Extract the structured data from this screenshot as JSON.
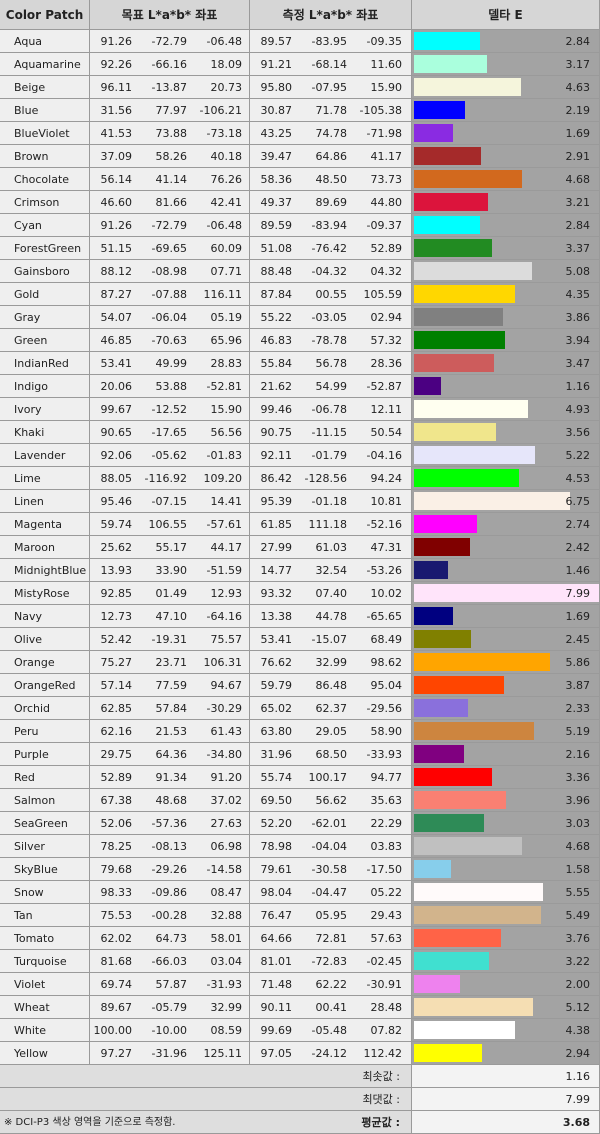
{
  "header": [
    "Color Patch",
    "목표 L*a*b* 좌표",
    "측정 L*a*b* 좌표",
    "델타 E"
  ],
  "rows": [
    {
      "name": "Aqua",
      "color": "#00ffff",
      "target": [
        "91.26",
        "-72.79",
        "-06.48"
      ],
      "measured": [
        "89.57",
        "-83.95",
        "-09.35"
      ],
      "delta_e": "2.84"
    },
    {
      "name": "Aquamarine",
      "color": "#aaffdd",
      "target": [
        "92.26",
        "-66.16",
        "18.09"
      ],
      "measured": [
        "91.21",
        "-68.14",
        "11.60"
      ],
      "delta_e": "3.17"
    },
    {
      "name": "Beige",
      "color": "#f5f5dc",
      "target": [
        "96.11",
        "-13.87",
        "20.73"
      ],
      "measured": [
        "95.80",
        "-07.95",
        "15.90"
      ],
      "delta_e": "4.63"
    },
    {
      "name": "Blue",
      "color": "#0000ff",
      "target": [
        "31.56",
        "77.97",
        "-106.21"
      ],
      "measured": [
        "30.87",
        "71.78",
        "-105.38"
      ],
      "delta_e": "2.19"
    },
    {
      "name": "BlueViolet",
      "color": "#8a2be2",
      "target": [
        "41.53",
        "73.88",
        "-73.18"
      ],
      "measured": [
        "43.25",
        "74.78",
        "-71.98"
      ],
      "delta_e": "1.69"
    },
    {
      "name": "Brown",
      "color": "#a52a2a",
      "target": [
        "37.09",
        "58.26",
        "40.18"
      ],
      "measured": [
        "39.47",
        "64.86",
        "41.17"
      ],
      "delta_e": "2.91"
    },
    {
      "name": "Chocolate",
      "color": "#d2691e",
      "target": [
        "56.14",
        "41.14",
        "76.26"
      ],
      "measured": [
        "58.36",
        "48.50",
        "73.73"
      ],
      "delta_e": "4.68"
    },
    {
      "name": "Crimson",
      "color": "#dc143c",
      "target": [
        "46.60",
        "81.66",
        "42.41"
      ],
      "measured": [
        "49.37",
        "89.69",
        "44.80"
      ],
      "delta_e": "3.21"
    },
    {
      "name": "Cyan",
      "color": "#00ffff",
      "target": [
        "91.26",
        "-72.79",
        "-06.48"
      ],
      "measured": [
        "89.59",
        "-83.94",
        "-09.37"
      ],
      "delta_e": "2.84"
    },
    {
      "name": "ForestGreen",
      "color": "#228b22",
      "target": [
        "51.15",
        "-69.65",
        "60.09"
      ],
      "measured": [
        "51.08",
        "-76.42",
        "52.89"
      ],
      "delta_e": "3.37"
    },
    {
      "name": "Gainsboro",
      "color": "#dcdcdc",
      "target": [
        "88.12",
        "-08.98",
        "07.71"
      ],
      "measured": [
        "88.48",
        "-04.32",
        "04.32"
      ],
      "delta_e": "5.08"
    },
    {
      "name": "Gold",
      "color": "#ffd700",
      "target": [
        "87.27",
        "-07.88",
        "116.11"
      ],
      "measured": [
        "87.84",
        "00.55",
        "105.59"
      ],
      "delta_e": "4.35"
    },
    {
      "name": "Gray",
      "color": "#808080",
      "target": [
        "54.07",
        "-06.04",
        "05.19"
      ],
      "measured": [
        "55.22",
        "-03.05",
        "02.94"
      ],
      "delta_e": "3.86"
    },
    {
      "name": "Green",
      "color": "#008000",
      "target": [
        "46.85",
        "-70.63",
        "65.96"
      ],
      "measured": [
        "46.83",
        "-78.78",
        "57.32"
      ],
      "delta_e": "3.94"
    },
    {
      "name": "IndianRed",
      "color": "#cd5c5c",
      "target": [
        "53.41",
        "49.99",
        "28.83"
      ],
      "measured": [
        "55.84",
        "56.78",
        "28.36"
      ],
      "delta_e": "3.47"
    },
    {
      "name": "Indigo",
      "color": "#4b0082",
      "target": [
        "20.06",
        "53.88",
        "-52.81"
      ],
      "measured": [
        "21.62",
        "54.99",
        "-52.87"
      ],
      "delta_e": "1.16"
    },
    {
      "name": "Ivory",
      "color": "#fffff0",
      "target": [
        "99.67",
        "-12.52",
        "15.90"
      ],
      "measured": [
        "99.46",
        "-06.78",
        "12.11"
      ],
      "delta_e": "4.93"
    },
    {
      "name": "Khaki",
      "color": "#f0e68c",
      "target": [
        "90.65",
        "-17.65",
        "56.56"
      ],
      "measured": [
        "90.75",
        "-11.15",
        "50.54"
      ],
      "delta_e": "3.56"
    },
    {
      "name": "Lavender",
      "color": "#e6e6fa",
      "target": [
        "92.06",
        "-05.62",
        "-01.83"
      ],
      "measured": [
        "92.11",
        "-01.79",
        "-04.16"
      ],
      "delta_e": "5.22"
    },
    {
      "name": "Lime",
      "color": "#00ff00",
      "target": [
        "88.05",
        "-116.92",
        "109.20"
      ],
      "measured": [
        "86.42",
        "-128.56",
        "94.24"
      ],
      "delta_e": "4.53"
    },
    {
      "name": "Linen",
      "color": "#faf0e6",
      "target": [
        "95.46",
        "-07.15",
        "14.41"
      ],
      "measured": [
        "95.39",
        "-01.18",
        "10.81"
      ],
      "delta_e": "6.75"
    },
    {
      "name": "Magenta",
      "color": "#ff00ff",
      "target": [
        "59.74",
        "106.55",
        "-57.61"
      ],
      "measured": [
        "61.85",
        "111.18",
        "-52.16"
      ],
      "delta_e": "2.74"
    },
    {
      "name": "Maroon",
      "color": "#800000",
      "target": [
        "25.62",
        "55.17",
        "44.17"
      ],
      "measured": [
        "27.99",
        "61.03",
        "47.31"
      ],
      "delta_e": "2.42"
    },
    {
      "name": "MidnightBlue",
      "color": "#191970",
      "target": [
        "13.93",
        "33.90",
        "-51.59"
      ],
      "measured": [
        "14.77",
        "32.54",
        "-53.26"
      ],
      "delta_e": "1.46"
    },
    {
      "name": "MistyRose",
      "color": "#ffe4fa",
      "target": [
        "92.85",
        "01.49",
        "12.93"
      ],
      "measured": [
        "93.32",
        "07.40",
        "10.02"
      ],
      "delta_e": "7.99"
    },
    {
      "name": "Navy",
      "color": "#000080",
      "target": [
        "12.73",
        "47.10",
        "-64.16"
      ],
      "measured": [
        "13.38",
        "44.78",
        "-65.65"
      ],
      "delta_e": "1.69"
    },
    {
      "name": "Olive",
      "color": "#808000",
      "target": [
        "52.42",
        "-19.31",
        "75.57"
      ],
      "measured": [
        "53.41",
        "-15.07",
        "68.49"
      ],
      "delta_e": "2.45"
    },
    {
      "name": "Orange",
      "color": "#ffa500",
      "target": [
        "75.27",
        "23.71",
        "106.31"
      ],
      "measured": [
        "76.62",
        "32.99",
        "98.62"
      ],
      "delta_e": "5.86"
    },
    {
      "name": "OrangeRed",
      "color": "#ff4500",
      "target": [
        "57.14",
        "77.59",
        "94.67"
      ],
      "measured": [
        "59.79",
        "86.48",
        "95.04"
      ],
      "delta_e": "3.87"
    },
    {
      "name": "Orchid",
      "color": "#8a70dc",
      "target": [
        "62.85",
        "57.84",
        "-30.29"
      ],
      "measured": [
        "65.02",
        "62.37",
        "-29.56"
      ],
      "delta_e": "2.33"
    },
    {
      "name": "Peru",
      "color": "#cd853f",
      "target": [
        "62.16",
        "21.53",
        "61.43"
      ],
      "measured": [
        "63.80",
        "29.05",
        "58.90"
      ],
      "delta_e": "5.19"
    },
    {
      "name": "Purple",
      "color": "#800080",
      "target": [
        "29.75",
        "64.36",
        "-34.80"
      ],
      "measured": [
        "31.96",
        "68.50",
        "-33.93"
      ],
      "delta_e": "2.16"
    },
    {
      "name": "Red",
      "color": "#ff0000",
      "target": [
        "52.89",
        "91.34",
        "91.20"
      ],
      "measured": [
        "55.74",
        "100.17",
        "94.77"
      ],
      "delta_e": "3.36"
    },
    {
      "name": "Salmon",
      "color": "#fa8072",
      "target": [
        "67.38",
        "48.68",
        "37.02"
      ],
      "measured": [
        "69.50",
        "56.62",
        "35.63"
      ],
      "delta_e": "3.96"
    },
    {
      "name": "SeaGreen",
      "color": "#2e8b57",
      "target": [
        "52.06",
        "-57.36",
        "27.63"
      ],
      "measured": [
        "52.20",
        "-62.01",
        "22.29"
      ],
      "delta_e": "3.03"
    },
    {
      "name": "Silver",
      "color": "#c0c0c0",
      "target": [
        "78.25",
        "-08.13",
        "06.98"
      ],
      "measured": [
        "78.98",
        "-04.04",
        "03.83"
      ],
      "delta_e": "4.68"
    },
    {
      "name": "SkyBlue",
      "color": "#87ceeb",
      "target": [
        "79.68",
        "-29.26",
        "-14.58"
      ],
      "measured": [
        "79.61",
        "-30.58",
        "-17.50"
      ],
      "delta_e": "1.58"
    },
    {
      "name": "Snow",
      "color": "#fffafa",
      "target": [
        "98.33",
        "-09.86",
        "08.47"
      ],
      "measured": [
        "98.04",
        "-04.47",
        "05.22"
      ],
      "delta_e": "5.55"
    },
    {
      "name": "Tan",
      "color": "#d2b48c",
      "target": [
        "75.53",
        "-00.28",
        "32.88"
      ],
      "measured": [
        "76.47",
        "05.95",
        "29.43"
      ],
      "delta_e": "5.49"
    },
    {
      "name": "Tomato",
      "color": "#ff6347",
      "target": [
        "62.02",
        "64.73",
        "58.01"
      ],
      "measured": [
        "64.66",
        "72.81",
        "57.63"
      ],
      "delta_e": "3.76"
    },
    {
      "name": "Turquoise",
      "color": "#40e0d0",
      "target": [
        "81.68",
        "-66.03",
        "03.04"
      ],
      "measured": [
        "81.01",
        "-72.83",
        "-02.45"
      ],
      "delta_e": "3.22"
    },
    {
      "name": "Violet",
      "color": "#ee82ee",
      "target": [
        "69.74",
        "57.87",
        "-31.93"
      ],
      "measured": [
        "71.48",
        "62.22",
        "-30.91"
      ],
      "delta_e": "2.00"
    },
    {
      "name": "Wheat",
      "color": "#f5deb3",
      "target": [
        "89.67",
        "-05.79",
        "32.99"
      ],
      "measured": [
        "90.11",
        "00.41",
        "28.48"
      ],
      "delta_e": "5.12"
    },
    {
      "name": "White",
      "color": "#ffffff",
      "target": [
        "100.00",
        "-10.00",
        "08.59"
      ],
      "measured": [
        "99.69",
        "-05.48",
        "07.82"
      ],
      "delta_e": "4.38"
    },
    {
      "name": "Yellow",
      "color": "#ffff00",
      "target": [
        "97.27",
        "-31.96",
        "125.11"
      ],
      "measured": [
        "97.05",
        "-24.12",
        "112.42"
      ],
      "delta_e": "2.94"
    }
  ],
  "summary": [
    {
      "label": "최솟값 :",
      "value": "1.16"
    },
    {
      "label": "최댓값 :",
      "value": "7.99"
    },
    {
      "label": "평균값 :",
      "value": "3.68"
    }
  ],
  "note": "※ DCI-P3 색상 영역을 기준으로 측정함."
}
